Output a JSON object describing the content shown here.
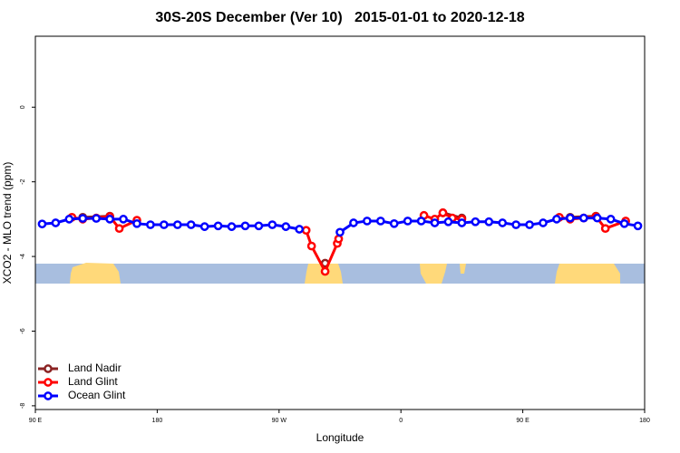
{
  "chart_data": {
    "type": "line",
    "title": "30S-20S December (Ver 10)   2015-01-01 to 2020-12-18",
    "xlabel": "Longitude",
    "ylabel": "XCO2 - MLO trend (ppm)",
    "xlim": [
      90,
      540
    ],
    "xticks": [
      {
        "value": 90,
        "label": "90 E"
      },
      {
        "value": 180,
        "label": "180"
      },
      {
        "value": 270,
        "label": "90 W"
      },
      {
        "value": 360,
        "label": "0"
      },
      {
        "value": 450,
        "label": "90 E"
      },
      {
        "value": 540,
        "label": "180"
      }
    ],
    "ylim": [
      -8.1,
      1.9
    ],
    "yticks": [
      0,
      -2,
      -4,
      -6,
      -8
    ],
    "legend": "bottom-left",
    "series": [
      {
        "name": "Land Nadir",
        "color": "#8b2323",
        "x": [
          125,
          145,
          null,
          304,
          null,
          391,
          405,
          null,
          485,
          504
        ],
        "values": [
          -2.95,
          -2.92,
          null,
          -4.18,
          null,
          -2.83,
          -2.97,
          null,
          -2.95,
          -2.92
        ]
      },
      {
        "name": "Land Glint",
        "color": "#ff0000",
        "x": [
          117,
          125,
          135,
          145,
          152,
          165,
          null,
          290,
          294,
          304,
          313,
          314,
          null,
          377,
          385,
          391,
          398,
          405,
          null,
          477,
          485,
          495,
          504,
          511,
          526
        ],
        "values": [
          -2.95,
          -3.0,
          -2.97,
          -2.93,
          -3.25,
          -3.03,
          null,
          -3.3,
          -3.72,
          -4.4,
          -3.65,
          -3.53,
          null,
          -2.9,
          -3.0,
          -2.83,
          -2.97,
          -3.0,
          null,
          -2.95,
          -3.0,
          -2.97,
          -2.93,
          -3.25,
          -3.05
        ]
      },
      {
        "name": "Ocean Glint",
        "color": "#0000ff",
        "x": [
          95,
          105,
          115,
          125,
          135,
          145,
          155,
          165,
          175,
          185,
          195,
          205,
          215,
          225,
          235,
          245,
          255,
          265,
          275,
          285,
          null,
          315,
          325,
          335,
          345,
          355,
          365,
          375,
          385,
          395,
          405,
          415,
          425,
          435,
          445,
          455,
          465,
          475,
          485,
          495,
          505,
          515,
          525,
          535
        ],
        "values": [
          -3.13,
          -3.1,
          -3.0,
          -2.98,
          -2.98,
          -3.0,
          -3.0,
          -3.12,
          -3.15,
          -3.15,
          -3.15,
          -3.15,
          -3.2,
          -3.18,
          -3.2,
          -3.18,
          -3.18,
          -3.15,
          -3.2,
          -3.27,
          null,
          -3.35,
          -3.1,
          -3.05,
          -3.05,
          -3.12,
          -3.05,
          -3.05,
          -3.1,
          -3.07,
          -3.1,
          -3.07,
          -3.07,
          -3.1,
          -3.15,
          -3.15,
          -3.1,
          -3.0,
          -2.97,
          -2.97,
          -2.97,
          -3.0,
          -3.12,
          -3.18
        ]
      }
    ]
  }
}
